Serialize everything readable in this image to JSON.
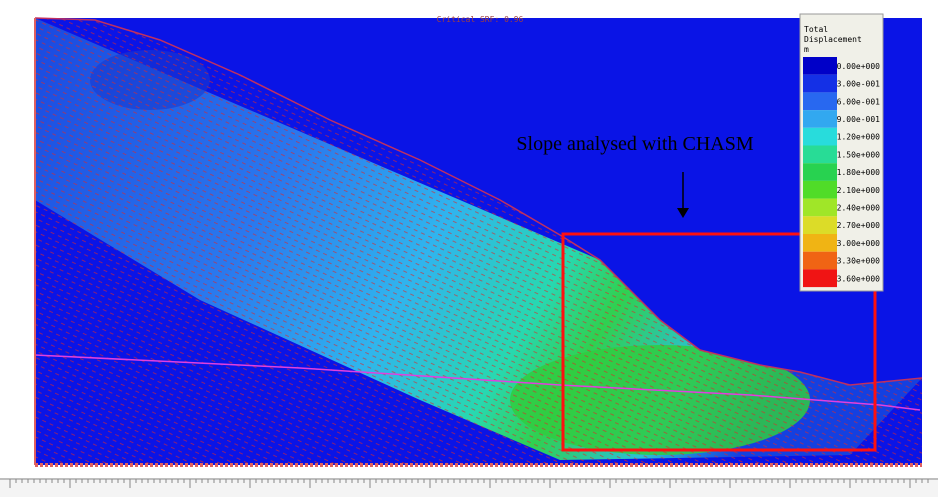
{
  "header": {
    "title": "Critical SRF: 0.96"
  },
  "annotation": "Slope analysed with CHASM",
  "legend": {
    "title": [
      "Total",
      "Displacement",
      "m"
    ],
    "items": [
      {
        "label": "0.00e+000",
        "color": "#0000c8"
      },
      {
        "label": "3.00e-001",
        "color": "#1430e6"
      },
      {
        "label": "6.00e-001",
        "color": "#2868f0"
      },
      {
        "label": "9.00e-001",
        "color": "#32a8f0"
      },
      {
        "label": "1.20e+000",
        "color": "#28dcdc"
      },
      {
        "label": "1.50e+000",
        "color": "#28dc96"
      },
      {
        "label": "1.80e+000",
        "color": "#28d250"
      },
      {
        "label": "2.10e+000",
        "color": "#50dc28"
      },
      {
        "label": "2.40e+000",
        "color": "#a0e628"
      },
      {
        "label": "2.70e+000",
        "color": "#dcdc28"
      },
      {
        "label": "3.00e+000",
        "color": "#f0b414"
      },
      {
        "label": "3.30e+000",
        "color": "#f06414"
      },
      {
        "label": "3.60e+000",
        "color": "#f01414"
      }
    ]
  }
}
